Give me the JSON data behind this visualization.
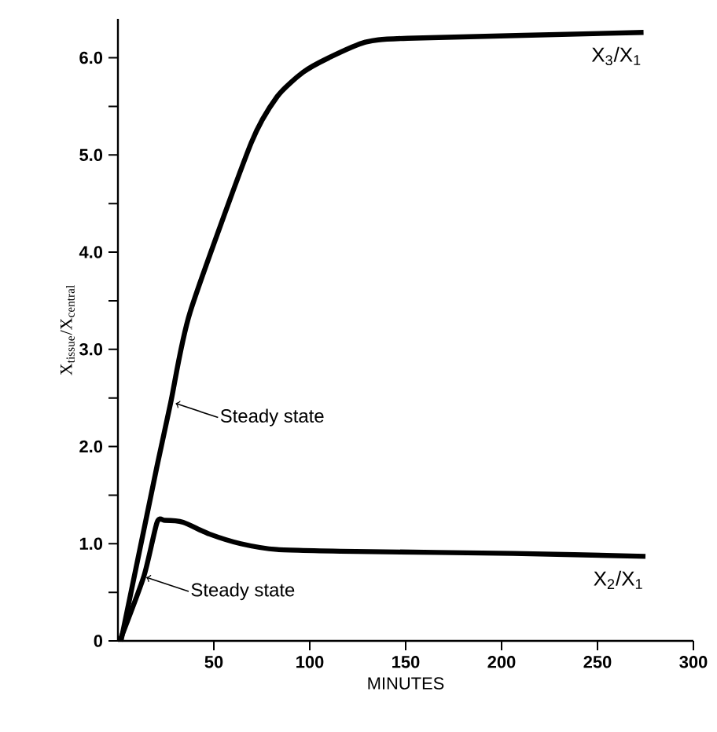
{
  "chart_data": {
    "type": "line",
    "xlabel": "MINUTES",
    "ylabel": "X$_{tissue}$/X$_{central}$",
    "xlim": [
      0,
      300
    ],
    "ylim": [
      0,
      6.4
    ],
    "xticks": [
      50,
      100,
      150,
      200,
      250,
      300
    ],
    "yticks": [
      0,
      {
        "value": 0.5,
        "label": null
      },
      {
        "value": 1,
        "label": "1.0"
      },
      {
        "value": 1.5,
        "label": null
      },
      {
        "value": 2,
        "label": "2.0"
      },
      {
        "value": 2.5,
        "label": null
      },
      {
        "value": 3,
        "label": "3.0"
      },
      {
        "value": 3.5,
        "label": null
      },
      {
        "value": 4,
        "label": "4.0"
      },
      {
        "value": 4.5,
        "label": null
      },
      {
        "value": 5,
        "label": "5.0"
      },
      {
        "value": 5.5,
        "label": null
      },
      {
        "value": 6,
        "label": "6.0"
      }
    ],
    "grid": false,
    "legend": false,
    "marker": "none",
    "line_style": "solid",
    "series": [
      {
        "name": "X$_{3}$/X$_{1}$",
        "color": "#000000",
        "x": [
          1.6,
          20.4,
          27.6,
          37.6,
          69.4,
          83,
          96.5,
          110,
          129,
          151,
          274
        ],
        "values": [
          0,
          1.8,
          2.46,
          3.38,
          5.12,
          5.6,
          5.85,
          6.0,
          6.16,
          6.2,
          6.26
        ]
      },
      {
        "name": "X$_{2}$/X$_{1}$",
        "color": "#000000",
        "x": [
          1,
          13.6,
          20.4,
          24.5,
          34,
          47.6,
          64,
          83,
          124,
          206,
          275
        ],
        "values": [
          0,
          0.67,
          1.22,
          1.24,
          1.22,
          1.1,
          1.0,
          0.94,
          0.92,
          0.9,
          0.87
        ]
      }
    ],
    "annotations": [
      {
        "text": "Steady state",
        "x": 27.6,
        "y": 2.46
      },
      {
        "text": "Steady state",
        "x": 12.3,
        "y": 0.67
      }
    ]
  }
}
